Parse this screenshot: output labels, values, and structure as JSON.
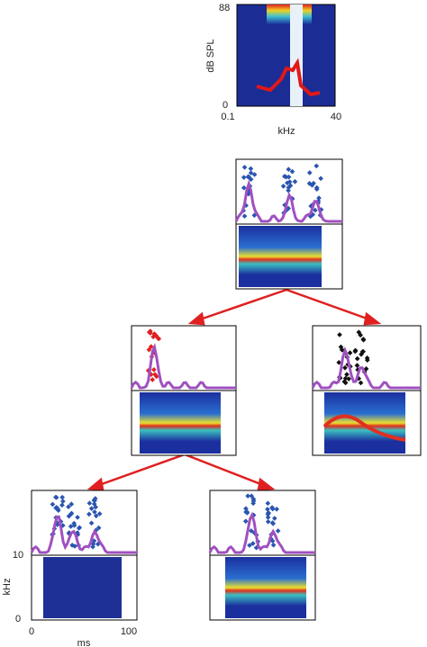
{
  "tuning_panel": {
    "y_axis_label": "dB SPL",
    "y_top": "88",
    "y_bottom": "0",
    "x_left": "0.1",
    "x_right": "40",
    "x_axis_label": "kHz"
  },
  "bottom_left_panel": {
    "y_axis_label": "kHz",
    "y_top": "10",
    "y_bottom": "0",
    "x_left": "0",
    "x_right": "100",
    "x_axis_label": "ms"
  }
}
